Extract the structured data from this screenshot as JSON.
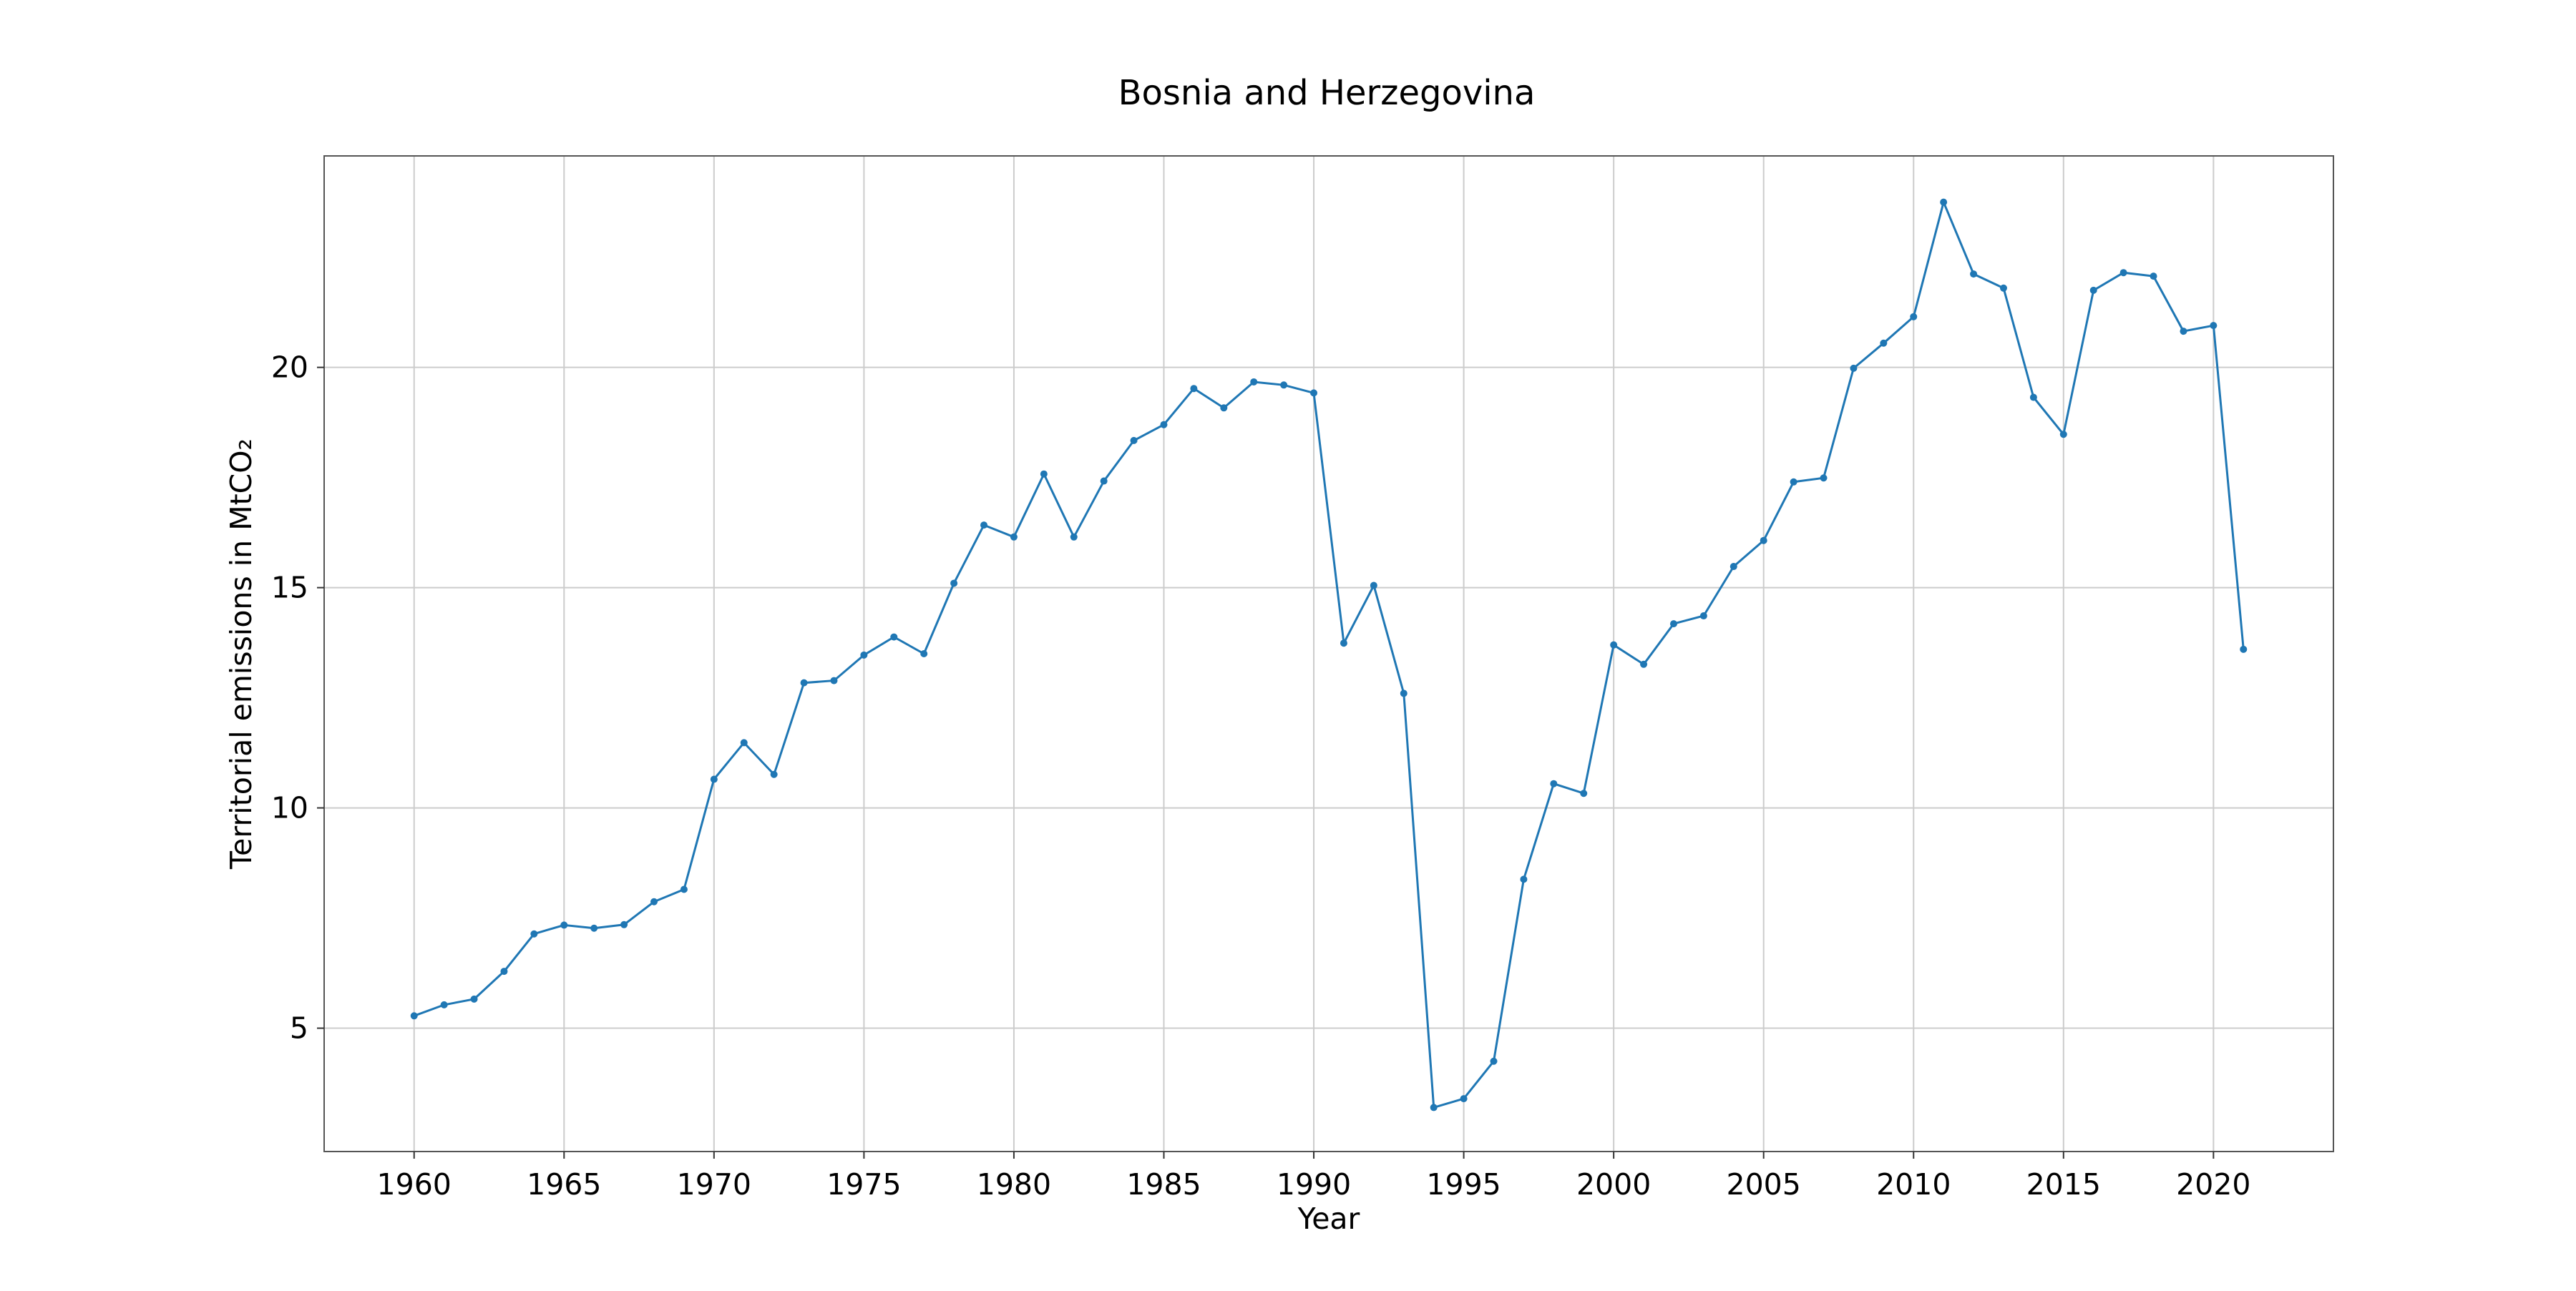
{
  "chart_data": {
    "type": "line",
    "title": "Bosnia and Herzegovina",
    "xlabel": "Year",
    "ylabel": "Territorial emissions in MtCO₂",
    "xlim": [
      1957,
      2024
    ],
    "ylim": [
      2.2,
      24.8
    ],
    "xticks": [
      1960,
      1965,
      1970,
      1975,
      1980,
      1985,
      1990,
      1995,
      2000,
      2005,
      2010,
      2015,
      2020
    ],
    "yticks": [
      5,
      10,
      15,
      20
    ],
    "grid": true,
    "legend": "none",
    "color": "#1f77b4",
    "x": [
      1960,
      1961,
      1962,
      1963,
      1964,
      1965,
      1966,
      1967,
      1968,
      1969,
      1970,
      1971,
      1972,
      1973,
      1974,
      1975,
      1976,
      1977,
      1978,
      1979,
      1980,
      1981,
      1982,
      1983,
      1984,
      1985,
      1986,
      1987,
      1988,
      1989,
      1990,
      1991,
      1992,
      1993,
      1994,
      1995,
      1996,
      1997,
      1998,
      1999,
      2000,
      2001,
      2002,
      2003,
      2004,
      2005,
      2006,
      2007,
      2008,
      2009,
      2010,
      2011,
      2012,
      2013,
      2014,
      2015,
      2016,
      2017,
      2018,
      2019,
      2020,
      2021
    ],
    "y": [
      5.28,
      5.53,
      5.66,
      6.29,
      7.14,
      7.34,
      7.27,
      7.35,
      7.87,
      8.15,
      10.65,
      11.48,
      10.76,
      12.84,
      12.89,
      13.47,
      13.88,
      13.5,
      15.1,
      16.42,
      16.15,
      17.58,
      16.15,
      17.42,
      18.34,
      18.7,
      19.52,
      19.08,
      19.67,
      19.6,
      19.42,
      13.74,
      15.05,
      12.6,
      3.2,
      3.4,
      4.25,
      8.38,
      10.55,
      10.33,
      13.7,
      13.26,
      14.18,
      14.36,
      15.48,
      16.07,
      17.4,
      17.49,
      19.98,
      20.55,
      21.15,
      23.75,
      22.12,
      21.8,
      19.32,
      18.48,
      21.75,
      22.15,
      22.07,
      20.82,
      20.95,
      13.6
    ]
  }
}
